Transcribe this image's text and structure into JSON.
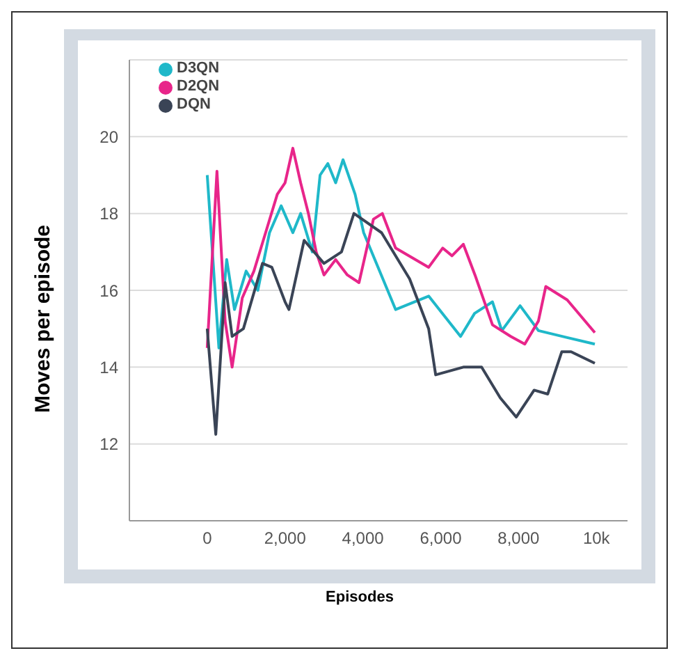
{
  "chart_data": {
    "type": "line",
    "xlabel": "Episodes",
    "ylabel": "Moves per episode",
    "xlim": [
      -2000,
      10800
    ],
    "xticks": [
      {
        "value": -2000,
        "label": null
      },
      0,
      {
        "value": 2000,
        "label": "2,000"
      },
      {
        "value": 4000,
        "label": "4,000"
      },
      {
        "value": 6000,
        "label": "6,000"
      },
      {
        "value": 8000,
        "label": "8,000"
      },
      {
        "value": 10000,
        "label": "10k"
      }
    ],
    "ylim": [
      10,
      22
    ],
    "yticks": [
      12,
      14,
      16,
      18,
      20
    ],
    "grid": "y",
    "legend": "top left",
    "line_style": "solid",
    "series": [
      {
        "name": "D3QN",
        "color": "#1fb8c9",
        "x": [
          0,
          300,
          500,
          700,
          1000,
          1300,
          1600,
          1900,
          2200,
          2400,
          2700,
          2900,
          3100,
          3300,
          3490,
          3800,
          4020,
          4840,
          5690,
          6510,
          6870,
          7330,
          7570,
          8040,
          8510,
          9250,
          9960
        ],
        "values": [
          19,
          14.5,
          16.8,
          15.5,
          16.5,
          16,
          17.5,
          18.2,
          17.5,
          18,
          17,
          19,
          19.3,
          18.8,
          19.4,
          18.5,
          17.5,
          15.5,
          15.85,
          14.8,
          15.4,
          15.7,
          14.95,
          15.6,
          14.95,
          14.77,
          14.6
        ]
      },
      {
        "name": "D2QN",
        "color": "#e8258a",
        "x": [
          0,
          250,
          460,
          640,
          900,
          1200,
          1500,
          1800,
          2000,
          2200,
          2400,
          2600,
          2800,
          3000,
          3300,
          3600,
          3900,
          4270,
          4500,
          4840,
          5690,
          6050,
          6290,
          6580,
          6880,
          7330,
          7800,
          8160,
          8510,
          8700,
          9250,
          9960
        ],
        "values": [
          14.5,
          19.1,
          15.2,
          14,
          15.8,
          16.5,
          17.5,
          18.5,
          18.8,
          19.7,
          18.8,
          18,
          17,
          16.4,
          16.8,
          16.4,
          16.2,
          17.85,
          18,
          17.1,
          16.6,
          17.1,
          16.9,
          17.2,
          16.4,
          15.1,
          14.8,
          14.6,
          15.2,
          16.1,
          15.75,
          14.9
        ]
      },
      {
        "name": "DQN",
        "color": "#3a4456",
        "x": [
          0,
          220,
          460,
          640,
          930,
          1420,
          1660,
          2000,
          2100,
          2490,
          3000,
          3450,
          3770,
          4480,
          5200,
          5690,
          5870,
          6580,
          7050,
          7530,
          7940,
          8400,
          8750,
          9110,
          9350,
          9960
        ],
        "values": [
          15,
          12.25,
          16.2,
          14.8,
          15,
          16.7,
          16.6,
          15.7,
          15.5,
          17.3,
          16.7,
          17,
          18,
          17.5,
          16.3,
          15,
          13.8,
          14,
          14,
          13.2,
          12.7,
          13.4,
          13.3,
          14.4,
          14.4,
          14.1
        ]
      }
    ]
  }
}
